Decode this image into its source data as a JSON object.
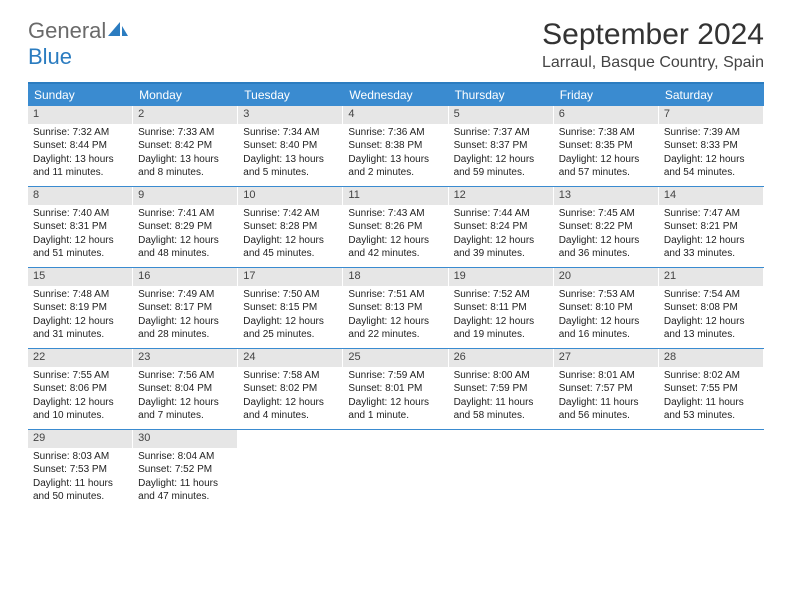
{
  "brand": {
    "text1": "General",
    "text2": "Blue"
  },
  "title": "September 2024",
  "location": "Larraul, Basque Country, Spain",
  "colors": {
    "headerBar": "#3a8bd0",
    "accent": "#2b7cc0",
    "dayNumBg": "#e6e6e6",
    "text": "#333333"
  },
  "weekdays": [
    "Sunday",
    "Monday",
    "Tuesday",
    "Wednesday",
    "Thursday",
    "Friday",
    "Saturday"
  ],
  "weeks": [
    [
      {
        "n": "1",
        "sr": "Sunrise: 7:32 AM",
        "ss": "Sunset: 8:44 PM",
        "d1": "Daylight: 13 hours",
        "d2": "and 11 minutes."
      },
      {
        "n": "2",
        "sr": "Sunrise: 7:33 AM",
        "ss": "Sunset: 8:42 PM",
        "d1": "Daylight: 13 hours",
        "d2": "and 8 minutes."
      },
      {
        "n": "3",
        "sr": "Sunrise: 7:34 AM",
        "ss": "Sunset: 8:40 PM",
        "d1": "Daylight: 13 hours",
        "d2": "and 5 minutes."
      },
      {
        "n": "4",
        "sr": "Sunrise: 7:36 AM",
        "ss": "Sunset: 8:38 PM",
        "d1": "Daylight: 13 hours",
        "d2": "and 2 minutes."
      },
      {
        "n": "5",
        "sr": "Sunrise: 7:37 AM",
        "ss": "Sunset: 8:37 PM",
        "d1": "Daylight: 12 hours",
        "d2": "and 59 minutes."
      },
      {
        "n": "6",
        "sr": "Sunrise: 7:38 AM",
        "ss": "Sunset: 8:35 PM",
        "d1": "Daylight: 12 hours",
        "d2": "and 57 minutes."
      },
      {
        "n": "7",
        "sr": "Sunrise: 7:39 AM",
        "ss": "Sunset: 8:33 PM",
        "d1": "Daylight: 12 hours",
        "d2": "and 54 minutes."
      }
    ],
    [
      {
        "n": "8",
        "sr": "Sunrise: 7:40 AM",
        "ss": "Sunset: 8:31 PM",
        "d1": "Daylight: 12 hours",
        "d2": "and 51 minutes."
      },
      {
        "n": "9",
        "sr": "Sunrise: 7:41 AM",
        "ss": "Sunset: 8:29 PM",
        "d1": "Daylight: 12 hours",
        "d2": "and 48 minutes."
      },
      {
        "n": "10",
        "sr": "Sunrise: 7:42 AM",
        "ss": "Sunset: 8:28 PM",
        "d1": "Daylight: 12 hours",
        "d2": "and 45 minutes."
      },
      {
        "n": "11",
        "sr": "Sunrise: 7:43 AM",
        "ss": "Sunset: 8:26 PM",
        "d1": "Daylight: 12 hours",
        "d2": "and 42 minutes."
      },
      {
        "n": "12",
        "sr": "Sunrise: 7:44 AM",
        "ss": "Sunset: 8:24 PM",
        "d1": "Daylight: 12 hours",
        "d2": "and 39 minutes."
      },
      {
        "n": "13",
        "sr": "Sunrise: 7:45 AM",
        "ss": "Sunset: 8:22 PM",
        "d1": "Daylight: 12 hours",
        "d2": "and 36 minutes."
      },
      {
        "n": "14",
        "sr": "Sunrise: 7:47 AM",
        "ss": "Sunset: 8:21 PM",
        "d1": "Daylight: 12 hours",
        "d2": "and 33 minutes."
      }
    ],
    [
      {
        "n": "15",
        "sr": "Sunrise: 7:48 AM",
        "ss": "Sunset: 8:19 PM",
        "d1": "Daylight: 12 hours",
        "d2": "and 31 minutes."
      },
      {
        "n": "16",
        "sr": "Sunrise: 7:49 AM",
        "ss": "Sunset: 8:17 PM",
        "d1": "Daylight: 12 hours",
        "d2": "and 28 minutes."
      },
      {
        "n": "17",
        "sr": "Sunrise: 7:50 AM",
        "ss": "Sunset: 8:15 PM",
        "d1": "Daylight: 12 hours",
        "d2": "and 25 minutes."
      },
      {
        "n": "18",
        "sr": "Sunrise: 7:51 AM",
        "ss": "Sunset: 8:13 PM",
        "d1": "Daylight: 12 hours",
        "d2": "and 22 minutes."
      },
      {
        "n": "19",
        "sr": "Sunrise: 7:52 AM",
        "ss": "Sunset: 8:11 PM",
        "d1": "Daylight: 12 hours",
        "d2": "and 19 minutes."
      },
      {
        "n": "20",
        "sr": "Sunrise: 7:53 AM",
        "ss": "Sunset: 8:10 PM",
        "d1": "Daylight: 12 hours",
        "d2": "and 16 minutes."
      },
      {
        "n": "21",
        "sr": "Sunrise: 7:54 AM",
        "ss": "Sunset: 8:08 PM",
        "d1": "Daylight: 12 hours",
        "d2": "and 13 minutes."
      }
    ],
    [
      {
        "n": "22",
        "sr": "Sunrise: 7:55 AM",
        "ss": "Sunset: 8:06 PM",
        "d1": "Daylight: 12 hours",
        "d2": "and 10 minutes."
      },
      {
        "n": "23",
        "sr": "Sunrise: 7:56 AM",
        "ss": "Sunset: 8:04 PM",
        "d1": "Daylight: 12 hours",
        "d2": "and 7 minutes."
      },
      {
        "n": "24",
        "sr": "Sunrise: 7:58 AM",
        "ss": "Sunset: 8:02 PM",
        "d1": "Daylight: 12 hours",
        "d2": "and 4 minutes."
      },
      {
        "n": "25",
        "sr": "Sunrise: 7:59 AM",
        "ss": "Sunset: 8:01 PM",
        "d1": "Daylight: 12 hours",
        "d2": "and 1 minute."
      },
      {
        "n": "26",
        "sr": "Sunrise: 8:00 AM",
        "ss": "Sunset: 7:59 PM",
        "d1": "Daylight: 11 hours",
        "d2": "and 58 minutes."
      },
      {
        "n": "27",
        "sr": "Sunrise: 8:01 AM",
        "ss": "Sunset: 7:57 PM",
        "d1": "Daylight: 11 hours",
        "d2": "and 56 minutes."
      },
      {
        "n": "28",
        "sr": "Sunrise: 8:02 AM",
        "ss": "Sunset: 7:55 PM",
        "d1": "Daylight: 11 hours",
        "d2": "and 53 minutes."
      }
    ],
    [
      {
        "n": "29",
        "sr": "Sunrise: 8:03 AM",
        "ss": "Sunset: 7:53 PM",
        "d1": "Daylight: 11 hours",
        "d2": "and 50 minutes."
      },
      {
        "n": "30",
        "sr": "Sunrise: 8:04 AM",
        "ss": "Sunset: 7:52 PM",
        "d1": "Daylight: 11 hours",
        "d2": "and 47 minutes."
      },
      null,
      null,
      null,
      null,
      null
    ]
  ]
}
